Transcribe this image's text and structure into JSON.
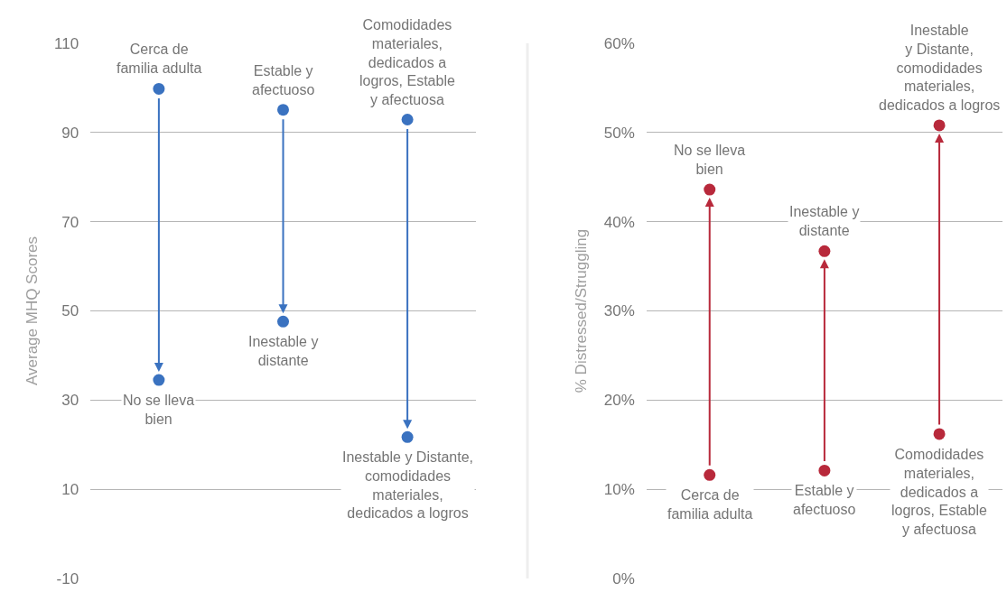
{
  "chart_data": [
    {
      "type": "scatter",
      "ylabel": "Average MHQ Scores",
      "categories": [
        null,
        null,
        null
      ],
      "ylim": [
        -10,
        110
      ],
      "yticks": [
        -10,
        10,
        30,
        50,
        70,
        90,
        110
      ],
      "grid": "y",
      "tick_labels": "y",
      "marker": "circle",
      "series": [
        {
          "color": "#3a72c0",
          "values": [
            99.8,
            95.1,
            92.9
          ],
          "value_labels": [
            "Cerca de\nfamilia adulta",
            "Estable y\nafectuoso",
            "Comodidades\nmateriales,\ndedicados a\nlogros, Estable\ny afectuosa"
          ]
        },
        {
          "color": "#3a72c0",
          "values": [
            34.5,
            47.6,
            21.7
          ],
          "value_labels": [
            "No se lleva\nbien",
            "Inestable y\ndistante",
            "Inestable y Distante,\ncomodidades\nmateriales,\ndedicados a logros"
          ]
        }
      ]
    },
    {
      "type": "scatter",
      "ylabel": "% Distressed/Struggling",
      "categories": [
        null,
        null,
        null
      ],
      "ylim": [
        0,
        60
      ],
      "yticks": [
        {
          "value": 0,
          "label": "0%"
        },
        {
          "value": 10,
          "label": "10%"
        },
        {
          "value": 20,
          "label": "20%"
        },
        {
          "value": 30,
          "label": "30%"
        },
        {
          "value": 40,
          "label": "40%"
        },
        {
          "value": 50,
          "label": "50%"
        },
        {
          "value": 60,
          "label": "60%"
        }
      ],
      "grid": "y",
      "tick_labels": "y",
      "marker": "circle",
      "series": [
        {
          "color": "#b8293b",
          "values": [
            11.6,
            12.1,
            16.2
          ],
          "value_labels": [
            "Cerca de\nfamilia adulta",
            "Estable y\nafectuoso",
            "Comodidades\nmateriales,\ndedicados a\nlogros, Estable\ny afectuosa"
          ]
        },
        {
          "color": "#b8293b",
          "values": [
            43.6,
            36.7,
            50.8
          ],
          "value_labels": [
            "No se lleva\nbien",
            "Inestable y\ndistante",
            "Inestable\ny Distante,\ncomodidades\nmateriales,\ndedicados a logros"
          ]
        }
      ]
    }
  ]
}
